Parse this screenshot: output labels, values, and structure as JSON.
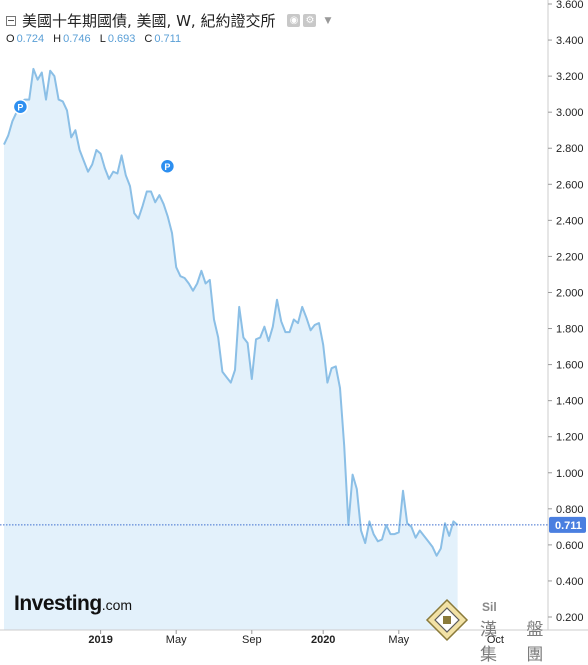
{
  "header": {
    "title": "美國十年期國債, 美國, W, 紀約證交所",
    "ohlc": [
      {
        "key": "O",
        "value": "0.724"
      },
      {
        "key": "H",
        "value": "0.746"
      },
      {
        "key": "L",
        "value": "0.693"
      },
      {
        "key": "C",
        "value": "0.711"
      }
    ],
    "icons": [
      "collapse-icon",
      "eye-icon",
      "gear-icon",
      "dropdown-icon"
    ]
  },
  "logo": {
    "main": "Investing",
    "domain": ".com"
  },
  "watermark": {
    "text": "漢 盤 集 團",
    "sub": "Sil"
  },
  "colors": {
    "line": "#8bbfe6",
    "area": "#e3f1fb",
    "price_line": "#3f6fcf",
    "price_label_bg": "#4a7fe0",
    "marker": "#2d8ff0"
  },
  "chart_data": {
    "type": "area",
    "title": "美國十年期國債, 美國, W, 紀約證交所",
    "xlabel": "",
    "ylabel": "",
    "ylim": [
      0.2,
      3.6
    ],
    "y_ticks": [
      "0.200",
      "0.400",
      "0.600",
      "0.800",
      "1.000",
      "1.200",
      "1.400",
      "1.600",
      "1.800",
      "2.000",
      "2.200",
      "2.400",
      "2.600",
      "2.800",
      "3.000",
      "3.200",
      "3.400",
      "3.600"
    ],
    "x_ticks": [
      {
        "label": "2019",
        "index": 23
      },
      {
        "label": "May",
        "index": 41
      },
      {
        "label": "Sep",
        "index": 59
      },
      {
        "label": "2020",
        "index": 76
      },
      {
        "label": "May",
        "index": 94
      },
      {
        "label": "Oct",
        "index": 117
      }
    ],
    "current_price": {
      "label": "0.711",
      "value": 0.711
    },
    "markers": [
      {
        "label": "P",
        "index": 2,
        "value": 3.03
      },
      {
        "label": "P",
        "index": 37,
        "value": 2.7
      }
    ],
    "series": [
      {
        "values": [
          2.82,
          2.87,
          2.95,
          3.0,
          3.06,
          3.07,
          3.07,
          3.24,
          3.18,
          3.22,
          3.07,
          3.23,
          3.2,
          3.07,
          3.06,
          3.01,
          2.86,
          2.9,
          2.79,
          2.73,
          2.67,
          2.71,
          2.79,
          2.77,
          2.69,
          2.63,
          2.67,
          2.66,
          2.76,
          2.65,
          2.59,
          2.44,
          2.41,
          2.48,
          2.56,
          2.56,
          2.5,
          2.54,
          2.49,
          2.42,
          2.33,
          2.14,
          2.09,
          2.08,
          2.05,
          2.01,
          2.05,
          2.12,
          2.05,
          2.07,
          1.85,
          1.75,
          1.56,
          1.53,
          1.5,
          1.57,
          1.92,
          1.75,
          1.72,
          1.52,
          1.74,
          1.75,
          1.81,
          1.73,
          1.81,
          1.96,
          1.84,
          1.78,
          1.78,
          1.85,
          1.83,
          1.92,
          1.86,
          1.79,
          1.82,
          1.83,
          1.71,
          1.5,
          1.58,
          1.59,
          1.47,
          1.15,
          0.71,
          0.99,
          0.91,
          0.68,
          0.61,
          0.73,
          0.66,
          0.62,
          0.63,
          0.71,
          0.66,
          0.66,
          0.67,
          0.9,
          0.72,
          0.7,
          0.64,
          0.68,
          0.65,
          0.62,
          0.59,
          0.54,
          0.58,
          0.72,
          0.65,
          0.73,
          0.71
        ]
      }
    ],
    "grid": false,
    "legend": "none"
  }
}
